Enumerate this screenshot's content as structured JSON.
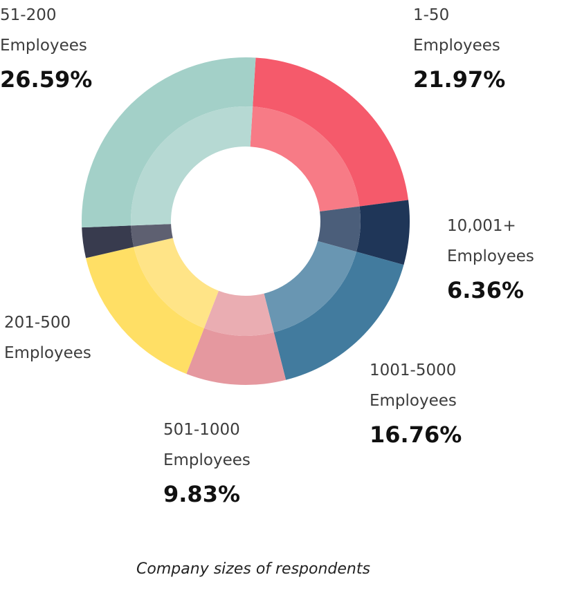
{
  "chart_data": {
    "type": "pie",
    "style": "donut",
    "caption": "Company sizes of respondents",
    "slices": [
      {
        "name_line1": "1-50",
        "name_line2": "Employees",
        "value_label": "21.97%",
        "value": 21.97,
        "color": "#F55A6B",
        "inner_color": "#F77B86"
      },
      {
        "name_line1": "10,001+",
        "name_line2": "Employees",
        "value_label": "6.36%",
        "value": 6.36,
        "color": "#1F3658",
        "inner_color": "#4B5E7A"
      },
      {
        "name_line1": "1001-5000",
        "name_line2": "Employees",
        "value_label": "16.76%",
        "value": 16.76,
        "color": "#427B9E",
        "inner_color": "#6996B2"
      },
      {
        "name_line1": "501-1000",
        "name_line2": "Employees",
        "value_label": "9.83%",
        "value": 9.83,
        "color": "#E5989F",
        "inner_color": "#EAADB2"
      },
      {
        "name_line1": "201-500",
        "name_line2": "Employees",
        "value_label": "",
        "value": 15.5,
        "color": "#FFDF65",
        "inner_color": "#FFE487"
      },
      {
        "name_line1": "",
        "name_line2": "",
        "value_label": "",
        "value": 3.0,
        "color": "#383B4E",
        "inner_color": "#5E6071"
      },
      {
        "name_line1": "51-200",
        "name_line2": "Employees",
        "value_label": "26.59%",
        "value": 26.59,
        "color": "#A3D0C8",
        "inner_color": "#B6D9D3"
      }
    ]
  }
}
